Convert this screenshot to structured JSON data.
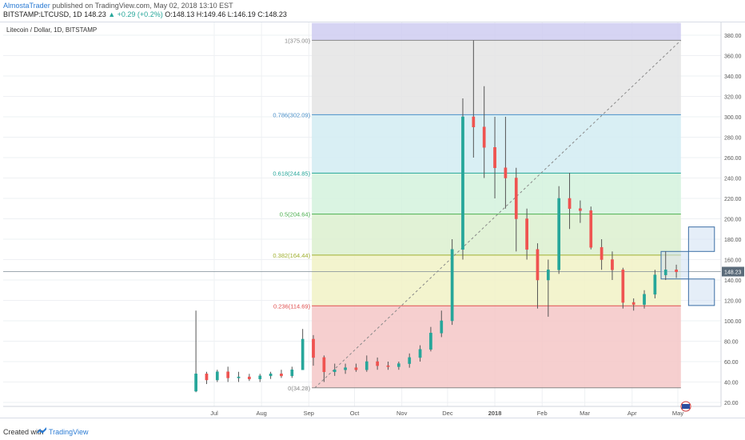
{
  "header": {
    "author": "AlmostaTrader",
    "published_text": " published on TradingView.com, May 02, 2018 13:10 EST",
    "symbol": "BITSTAMP:LTCUSD, 1D",
    "last": "148.23",
    "change": "▲ +0.29 (+0.2%)",
    "ohlc": "O:148.13 H:149.46 L:146.19 C:148.23"
  },
  "footer": {
    "created_with": "Created with",
    "brand": "TradingView"
  },
  "colors": {
    "up": "#26a69a",
    "down": "#ef5350",
    "wick": "#555555",
    "grid": "#eef0f3"
  },
  "chart_data": {
    "type": "candlestick",
    "title": "Litecoin / Dollar, 1D, BITSTAMP",
    "current_price_label": "148.23",
    "ylim": [
      10,
      390
    ],
    "y_ticks": [
      20,
      40,
      60,
      80,
      100,
      120,
      140,
      160,
      180,
      200,
      220,
      240,
      260,
      280,
      300,
      320,
      340,
      360,
      380
    ],
    "x_range": [
      "2018-05-16",
      "2018-06-01"
    ],
    "x_ticks": [
      {
        "label": "Jul",
        "date": "2017-07-01"
      },
      {
        "label": "Aug",
        "date": "2017-08-01"
      },
      {
        "label": "Sep",
        "date": "2017-09-01"
      },
      {
        "label": "Oct",
        "date": "2017-10-01"
      },
      {
        "label": "Nov",
        "date": "2017-11-01"
      },
      {
        "label": "Dec",
        "date": "2017-12-01"
      },
      {
        "label": "2018",
        "date": "2018-01-01"
      },
      {
        "label": "Feb",
        "date": "2018-02-01"
      },
      {
        "label": "Mar",
        "date": "2018-03-01"
      },
      {
        "label": "Apr",
        "date": "2018-04-01"
      },
      {
        "label": "May",
        "date": "2018-05-01"
      }
    ],
    "fib": {
      "start_date": "2017-09-03",
      "end_date": "2018-05-03",
      "trend_start": {
        "date": "2017-09-05",
        "price": 34.28
      },
      "trend_end": {
        "date": "2018-05-03",
        "price": 375.0
      },
      "levels": [
        {
          "label": "0(34.28)",
          "price": 34.28,
          "color": "#888888"
        },
        {
          "label": "0.236(114.69)",
          "price": 114.69,
          "color": "#e05050"
        },
        {
          "label": "0.382(164.44)",
          "price": 164.44,
          "color": "#a0b030"
        },
        {
          "label": "0.5(204.64)",
          "price": 204.64,
          "color": "#4caf50"
        },
        {
          "label": "0.618(244.85)",
          "price": 244.85,
          "color": "#26a69a"
        },
        {
          "label": "0.786(302.09)",
          "price": 302.09,
          "color": "#4a90c8"
        },
        {
          "label": "1(375.00)",
          "price": 375.0,
          "color": "#888888"
        }
      ],
      "zones": [
        {
          "from": 34.28,
          "to": 114.69,
          "color": "#f4c7c7"
        },
        {
          "from": 114.69,
          "to": 164.44,
          "color": "#f1f2c6"
        },
        {
          "from": 164.44,
          "to": 204.64,
          "color": "#dcf0cf"
        },
        {
          "from": 204.64,
          "to": 244.85,
          "color": "#d3f2dd"
        },
        {
          "from": 244.85,
          "to": 302.09,
          "color": "#d2ecf2"
        },
        {
          "from": 302.09,
          "to": 375.0,
          "color": "#e4e4e4"
        },
        {
          "from": 375.0,
          "to": 392,
          "color": "#cfcdf1"
        }
      ]
    },
    "boxes": [
      {
        "from_date": "2018-04-20",
        "to_date": "2018-05-08",
        "low": 141,
        "high": 168
      },
      {
        "from_date": "2018-05-08",
        "to_date": "2018-05-25",
        "low": 168,
        "high": 192
      },
      {
        "from_date": "2018-05-08",
        "to_date": "2018-05-25",
        "low": 115,
        "high": 141
      }
    ],
    "ohlc_weekly": [
      [
        "2017-06-19",
        31,
        110,
        30,
        48
      ],
      [
        "2017-06-26",
        48,
        50,
        38,
        42
      ],
      [
        "2017-07-03",
        42,
        52,
        40,
        50
      ],
      [
        "2017-07-10",
        50,
        55,
        40,
        44
      ],
      [
        "2017-07-17",
        44,
        50,
        40,
        45
      ],
      [
        "2017-07-24",
        45,
        48,
        41,
        43
      ],
      [
        "2017-07-31",
        43,
        48,
        40,
        46
      ],
      [
        "2017-08-07",
        46,
        50,
        43,
        48
      ],
      [
        "2017-08-14",
        48,
        52,
        44,
        46
      ],
      [
        "2017-08-21",
        46,
        55,
        44,
        52
      ],
      [
        "2017-08-28",
        52,
        92,
        52,
        82
      ],
      [
        "2017-09-04",
        82,
        86,
        56,
        64
      ],
      [
        "2017-09-11",
        64,
        66,
        40,
        50
      ],
      [
        "2017-09-18",
        50,
        58,
        46,
        52
      ],
      [
        "2017-09-25",
        52,
        58,
        48,
        54
      ],
      [
        "2017-10-02",
        54,
        58,
        50,
        52
      ],
      [
        "2017-10-09",
        52,
        66,
        50,
        60
      ],
      [
        "2017-10-16",
        60,
        64,
        52,
        56
      ],
      [
        "2017-10-23",
        56,
        60,
        52,
        55
      ],
      [
        "2017-10-30",
        55,
        60,
        52,
        58
      ],
      [
        "2017-11-06",
        58,
        68,
        54,
        64
      ],
      [
        "2017-11-13",
        64,
        76,
        60,
        72
      ],
      [
        "2017-11-20",
        72,
        94,
        70,
        88
      ],
      [
        "2017-11-27",
        88,
        110,
        84,
        100
      ],
      [
        "2017-12-04",
        100,
        180,
        96,
        170
      ],
      [
        "2017-12-11",
        170,
        318,
        160,
        300
      ],
      [
        "2017-12-18",
        300,
        375,
        260,
        290
      ],
      [
        "2017-12-25",
        290,
        330,
        240,
        270
      ],
      [
        "2018-01-01",
        270,
        300,
        220,
        250
      ],
      [
        "2018-01-08",
        250,
        300,
        210,
        240
      ],
      [
        "2018-01-15",
        240,
        250,
        168,
        200
      ],
      [
        "2018-01-22",
        200,
        210,
        160,
        170
      ],
      [
        "2018-01-29",
        170,
        176,
        112,
        140
      ],
      [
        "2018-02-05",
        140,
        160,
        104,
        150
      ],
      [
        "2018-02-12",
        150,
        232,
        146,
        220
      ],
      [
        "2018-02-19",
        220,
        245,
        190,
        210
      ],
      [
        "2018-02-26",
        210,
        218,
        196,
        208
      ],
      [
        "2018-03-05",
        208,
        212,
        170,
        172
      ],
      [
        "2018-03-12",
        172,
        180,
        150,
        160
      ],
      [
        "2018-03-19",
        160,
        168,
        140,
        150
      ],
      [
        "2018-03-26",
        150,
        152,
        112,
        118
      ],
      [
        "2018-04-02",
        118,
        122,
        110,
        116
      ],
      [
        "2018-04-09",
        116,
        130,
        112,
        126
      ],
      [
        "2018-04-16",
        126,
        150,
        122,
        145
      ],
      [
        "2018-04-23",
        145,
        168,
        140,
        150
      ],
      [
        "2018-04-30",
        150,
        155,
        142,
        148
      ]
    ]
  }
}
